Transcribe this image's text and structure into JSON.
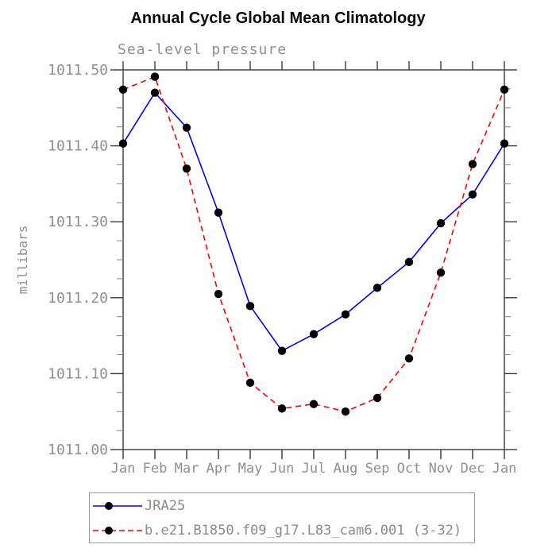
{
  "header": {
    "title": "Annual Cycle Global Mean Climatology",
    "subtitle": "Sea-level pressure"
  },
  "chart_data": {
    "type": "line",
    "title": "Annual Cycle Global Mean Climatology",
    "subtitle": "Sea-level pressure",
    "xlabel": "",
    "ylabel": "millibars",
    "categories": [
      "Jan",
      "Feb",
      "Mar",
      "Apr",
      "May",
      "Jun",
      "Jul",
      "Aug",
      "Sep",
      "Oct",
      "Nov",
      "Dec",
      "Jan"
    ],
    "ylim": [
      1011.0,
      1011.5
    ],
    "ytick_major_interval": 0.1,
    "ytick_minor_interval": 0.025,
    "ytick_labels": [
      "1011.00",
      "1011.10",
      "1011.20",
      "1011.30",
      "1011.40",
      "1011.50"
    ],
    "grid": false,
    "legend_position": "bottom-left-box",
    "series": [
      {
        "name": "JRA25",
        "color": "#0000ff",
        "line_style": "solid",
        "marker": "filled-circle",
        "marker_color": "#000000",
        "values": [
          1011.403,
          1011.47,
          1011.424,
          1011.312,
          1011.189,
          1011.13,
          1011.152,
          1011.178,
          1011.213,
          1011.247,
          1011.298,
          1011.336,
          1011.403
        ]
      },
      {
        "name": "b.e21.B1850.f09_g17.L83_cam6.001 (3-32)",
        "color": "#ff0000",
        "line_style": "dashed",
        "marker": "filled-circle",
        "marker_color": "#000000",
        "values": [
          1011.474,
          1011.491,
          1011.37,
          1011.205,
          1011.088,
          1011.054,
          1011.06,
          1011.05,
          1011.068,
          1011.12,
          1011.233,
          1011.376,
          1011.474
        ]
      }
    ]
  },
  "colors": {
    "axis_frame": "#3a3a3a",
    "minor_tick": "#8a8a8a",
    "label_gray": "#8f8f8f",
    "legend_border": "#9a9a9a",
    "series_blue": "#0000ff",
    "series_red": "#ff0000",
    "marker_black": "#000000"
  }
}
